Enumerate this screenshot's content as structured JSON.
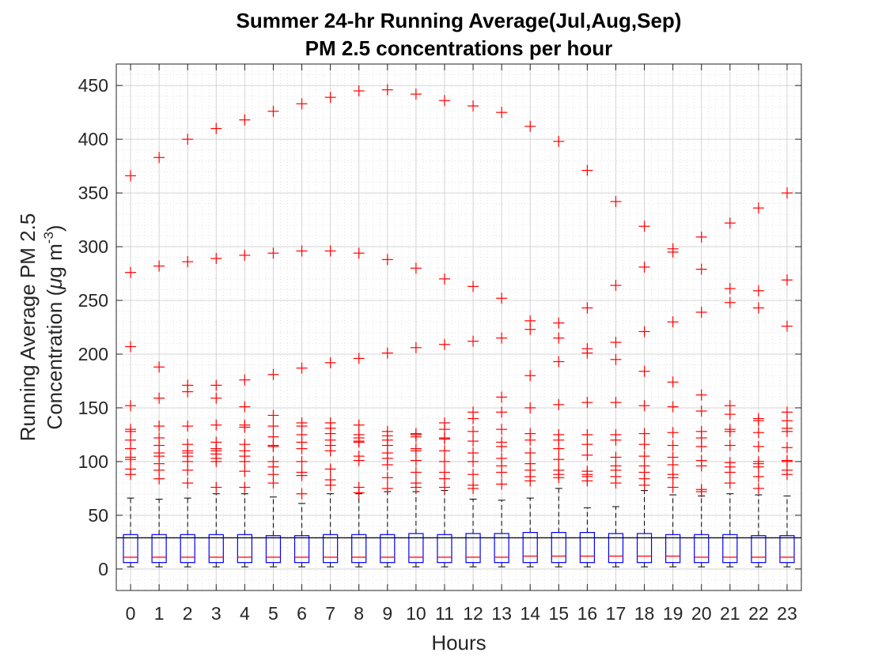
{
  "chart_data": {
    "type": "box",
    "title": [
      "Summer 24-hr Running Average(Jul,Aug,Sep)",
      "PM 2.5 concentrations per hour"
    ],
    "xlabel": "Hours",
    "ylabel": {
      "line1": "Running Average PM 2.5",
      "line2_prefix": "Concentration (",
      "line2_mu": "μ",
      "line2_unit": "g m",
      "line2_sup": "-3",
      "line2_suffix": ")"
    },
    "xlim": [
      -0.5,
      23.5
    ],
    "ylim": [
      -20,
      470
    ],
    "categories": [
      "0",
      "1",
      "2",
      "3",
      "4",
      "5",
      "6",
      "7",
      "8",
      "9",
      "10",
      "11",
      "12",
      "13",
      "14",
      "15",
      "16",
      "17",
      "18",
      "19",
      "20",
      "21",
      "22",
      "23"
    ],
    "yticks": [
      0,
      50,
      100,
      150,
      200,
      250,
      300,
      350,
      400,
      450
    ],
    "reference_line": 29,
    "grid": true,
    "minor_grid": true,
    "colors": {
      "box": "#0000ff",
      "median": "#ff0000",
      "whisker": "#000000",
      "outlier": "#ff0000",
      "grid": "#dcdcdc",
      "axes": "#262626"
    },
    "boxes": [
      {
        "q1": 6,
        "median": 11,
        "q3": 32,
        "whisker_low": 2,
        "whisker_high": 66
      },
      {
        "q1": 6,
        "median": 11,
        "q3": 32,
        "whisker_low": 2,
        "whisker_high": 65
      },
      {
        "q1": 6,
        "median": 11,
        "q3": 32,
        "whisker_low": 2,
        "whisker_high": 66
      },
      {
        "q1": 6,
        "median": 11,
        "q3": 32,
        "whisker_low": 2,
        "whisker_high": 70
      },
      {
        "q1": 6,
        "median": 11,
        "q3": 32,
        "whisker_low": 2,
        "whisker_high": 70
      },
      {
        "q1": 6,
        "median": 11,
        "q3": 31,
        "whisker_low": 2,
        "whisker_high": 67
      },
      {
        "q1": 6,
        "median": 11,
        "q3": 31,
        "whisker_low": 2,
        "whisker_high": 61
      },
      {
        "q1": 6,
        "median": 11,
        "q3": 32,
        "whisker_low": 2,
        "whisker_high": 70
      },
      {
        "q1": 6,
        "median": 11,
        "q3": 32,
        "whisker_low": 2,
        "whisker_high": 70
      },
      {
        "q1": 6,
        "median": 11,
        "q3": 32,
        "whisker_low": 2,
        "whisker_high": 72
      },
      {
        "q1": 6,
        "median": 11,
        "q3": 33,
        "whisker_low": 2,
        "whisker_high": 72
      },
      {
        "q1": 6,
        "median": 11,
        "q3": 32,
        "whisker_low": 2,
        "whisker_high": 73
      },
      {
        "q1": 6,
        "median": 11,
        "q3": 33,
        "whisker_low": 2,
        "whisker_high": 65
      },
      {
        "q1": 6,
        "median": 11,
        "q3": 33,
        "whisker_low": 2,
        "whisker_high": 64
      },
      {
        "q1": 6,
        "median": 12,
        "q3": 34,
        "whisker_low": 2,
        "whisker_high": 66
      },
      {
        "q1": 6,
        "median": 12,
        "q3": 34,
        "whisker_low": 2,
        "whisker_high": 75
      },
      {
        "q1": 6,
        "median": 12,
        "q3": 34,
        "whisker_low": 2,
        "whisker_high": 57
      },
      {
        "q1": 6,
        "median": 12,
        "q3": 33,
        "whisker_low": 2,
        "whisker_high": 58
      },
      {
        "q1": 6,
        "median": 12,
        "q3": 33,
        "whisker_low": 2,
        "whisker_high": 73
      },
      {
        "q1": 6,
        "median": 12,
        "q3": 32,
        "whisker_low": 2,
        "whisker_high": 69
      },
      {
        "q1": 6,
        "median": 11,
        "q3": 32,
        "whisker_low": 2,
        "whisker_high": 68
      },
      {
        "q1": 6,
        "median": 11,
        "q3": 32,
        "whisker_low": 2,
        "whisker_high": 70
      },
      {
        "q1": 6,
        "median": 11,
        "q3": 31,
        "whisker_low": 2,
        "whisker_high": 69
      },
      {
        "q1": 6,
        "median": 11,
        "q3": 31,
        "whisker_low": 2,
        "whisker_high": 68
      }
    ],
    "outliers": [
      [
        366,
        276,
        207,
        152,
        130,
        128,
        120,
        112,
        104,
        102,
        93,
        88
      ],
      [
        383,
        282,
        188,
        159,
        133,
        122,
        115,
        108,
        105,
        98,
        92,
        84
      ],
      [
        400,
        286,
        171,
        165,
        133,
        116,
        110,
        108,
        105,
        100,
        92,
        80
      ],
      [
        410,
        289,
        171,
        159,
        134,
        118,
        112,
        110,
        107,
        103,
        100,
        76
      ],
      [
        418,
        292,
        176,
        151,
        134,
        132,
        116,
        110,
        105,
        100,
        91,
        76
      ],
      [
        426,
        294,
        181,
        143,
        133,
        123,
        115,
        114,
        100,
        95,
        88,
        80
      ],
      [
        433,
        296,
        187,
        136,
        133,
        125,
        118,
        112,
        100,
        90,
        87,
        70
      ],
      [
        439,
        296,
        192,
        136,
        131,
        126,
        120,
        115,
        110,
        93,
        83,
        78
      ],
      [
        445,
        294,
        196,
        134,
        125,
        122,
        119,
        118,
        105,
        101,
        76,
        71
      ],
      [
        446,
        288,
        201,
        128,
        124,
        120,
        115,
        108,
        103,
        97,
        85,
        75
      ],
      [
        442,
        280,
        206,
        126,
        125,
        123,
        112,
        110,
        101,
        90,
        80,
        76
      ],
      [
        436,
        270,
        209,
        136,
        130,
        122,
        121,
        110,
        100,
        90,
        84,
        76
      ],
      [
        431,
        263,
        212,
        146,
        140,
        128,
        119,
        108,
        100,
        88,
        78,
        75
      ],
      [
        425,
        252,
        215,
        160,
        146,
        130,
        118,
        114,
        103,
        96,
        90,
        79
      ],
      [
        412,
        231,
        223,
        180,
        150,
        126,
        120,
        108,
        98,
        92,
        86,
        82
      ],
      [
        398,
        229,
        215,
        193,
        153,
        125,
        120,
        112,
        102,
        92,
        88,
        85
      ],
      [
        371,
        243,
        205,
        201,
        155,
        125,
        116,
        106,
        91,
        88,
        86,
        82
      ],
      [
        342,
        264,
        211,
        195,
        155,
        125,
        120,
        104,
        96,
        92,
        86,
        80
      ],
      [
        319,
        281,
        221,
        184,
        152,
        126,
        116,
        105,
        96,
        90,
        84,
        78
      ],
      [
        298,
        295,
        230,
        174,
        151,
        127,
        115,
        104,
        97,
        88,
        85,
        76
      ],
      [
        309,
        279,
        239,
        162,
        147,
        128,
        122,
        114,
        101,
        96,
        74,
        72
      ],
      [
        322,
        261,
        248,
        152,
        144,
        130,
        128,
        115,
        99,
        95,
        90,
        80
      ],
      [
        336,
        259,
        243,
        140,
        138,
        127,
        114,
        100,
        98,
        95,
        86,
        75
      ],
      [
        350,
        269,
        226,
        146,
        138,
        131,
        128,
        113,
        101,
        100,
        92,
        88
      ]
    ]
  }
}
